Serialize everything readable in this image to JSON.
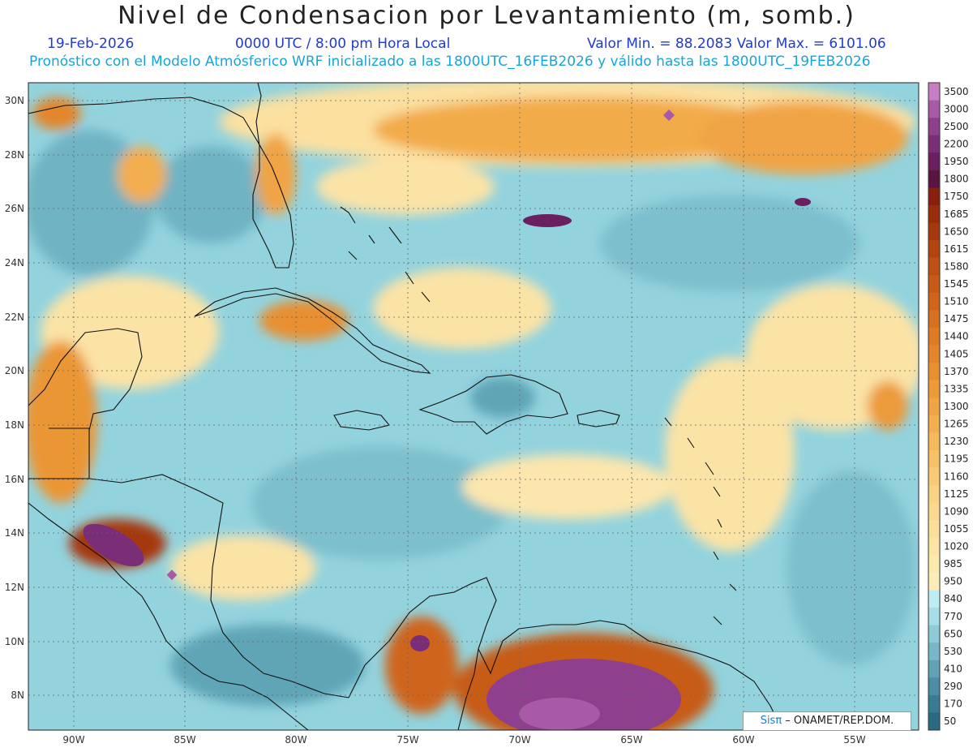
{
  "header": {
    "title": "Nivel de Condensacion por Levantamiento (m, somb.)",
    "date": "19-Feb-2026",
    "time": "0000 UTC / 8:00 pm Hora Local",
    "minmax": "Valor Min. = 88.2083   Valor Max. = 6101.06",
    "model_info": "Pronóstico con el Modelo Atmósferico WRF inicializado a las 1800UTC_16FEB2026 y válido hasta las  1800UTC_19FEB2026"
  },
  "axes": {
    "lon_labels": [
      "90W",
      "85W",
      "80W",
      "75W",
      "70W",
      "65W",
      "60W",
      "55W"
    ],
    "lat_labels": [
      "30N",
      "28N",
      "26N",
      "24N",
      "22N",
      "20N",
      "18N",
      "16N",
      "14N",
      "12N",
      "10N",
      "8N"
    ]
  },
  "colorbar": {
    "labels": [
      "3500",
      "3000",
      "2500",
      "2200",
      "1950",
      "1800",
      "1750",
      "1685",
      "1650",
      "1615",
      "1580",
      "1545",
      "1510",
      "1475",
      "1440",
      "1405",
      "1370",
      "1335",
      "1300",
      "1265",
      "1230",
      "1195",
      "1160",
      "1125",
      "1090",
      "1055",
      "1020",
      "985",
      "950",
      "840",
      "770",
      "650",
      "530",
      "410",
      "290",
      "170",
      "50"
    ],
    "colors": [
      "#c77fc4",
      "#a85aa8",
      "#8e3f8e",
      "#7a2e78",
      "#6a1f5f",
      "#5a1440",
      "#8a1f0f",
      "#9a2c0c",
      "#a6380d",
      "#b2440f",
      "#bd5012",
      "#c65b16",
      "#cf651a",
      "#d7701f",
      "#de7b24",
      "#e3852a",
      "#e88f31",
      "#ec9a3a",
      "#f0a444",
      "#f3ae4f",
      "#f5b85b",
      "#f7c168",
      "#f8ca76",
      "#f9d283",
      "#fad98f",
      "#fbdf9a",
      "#fce4a4",
      "#fce9ae",
      "#fdedb8",
      "#bfeef2",
      "#a6dde6",
      "#8fcad7",
      "#79b6c7",
      "#63a2b6",
      "#4d8ea5",
      "#3a7b94",
      "#2a6a84"
    ]
  },
  "credit": {
    "brand": "Sisπ",
    "text": " – ONAMET/REP.DOM."
  }
}
